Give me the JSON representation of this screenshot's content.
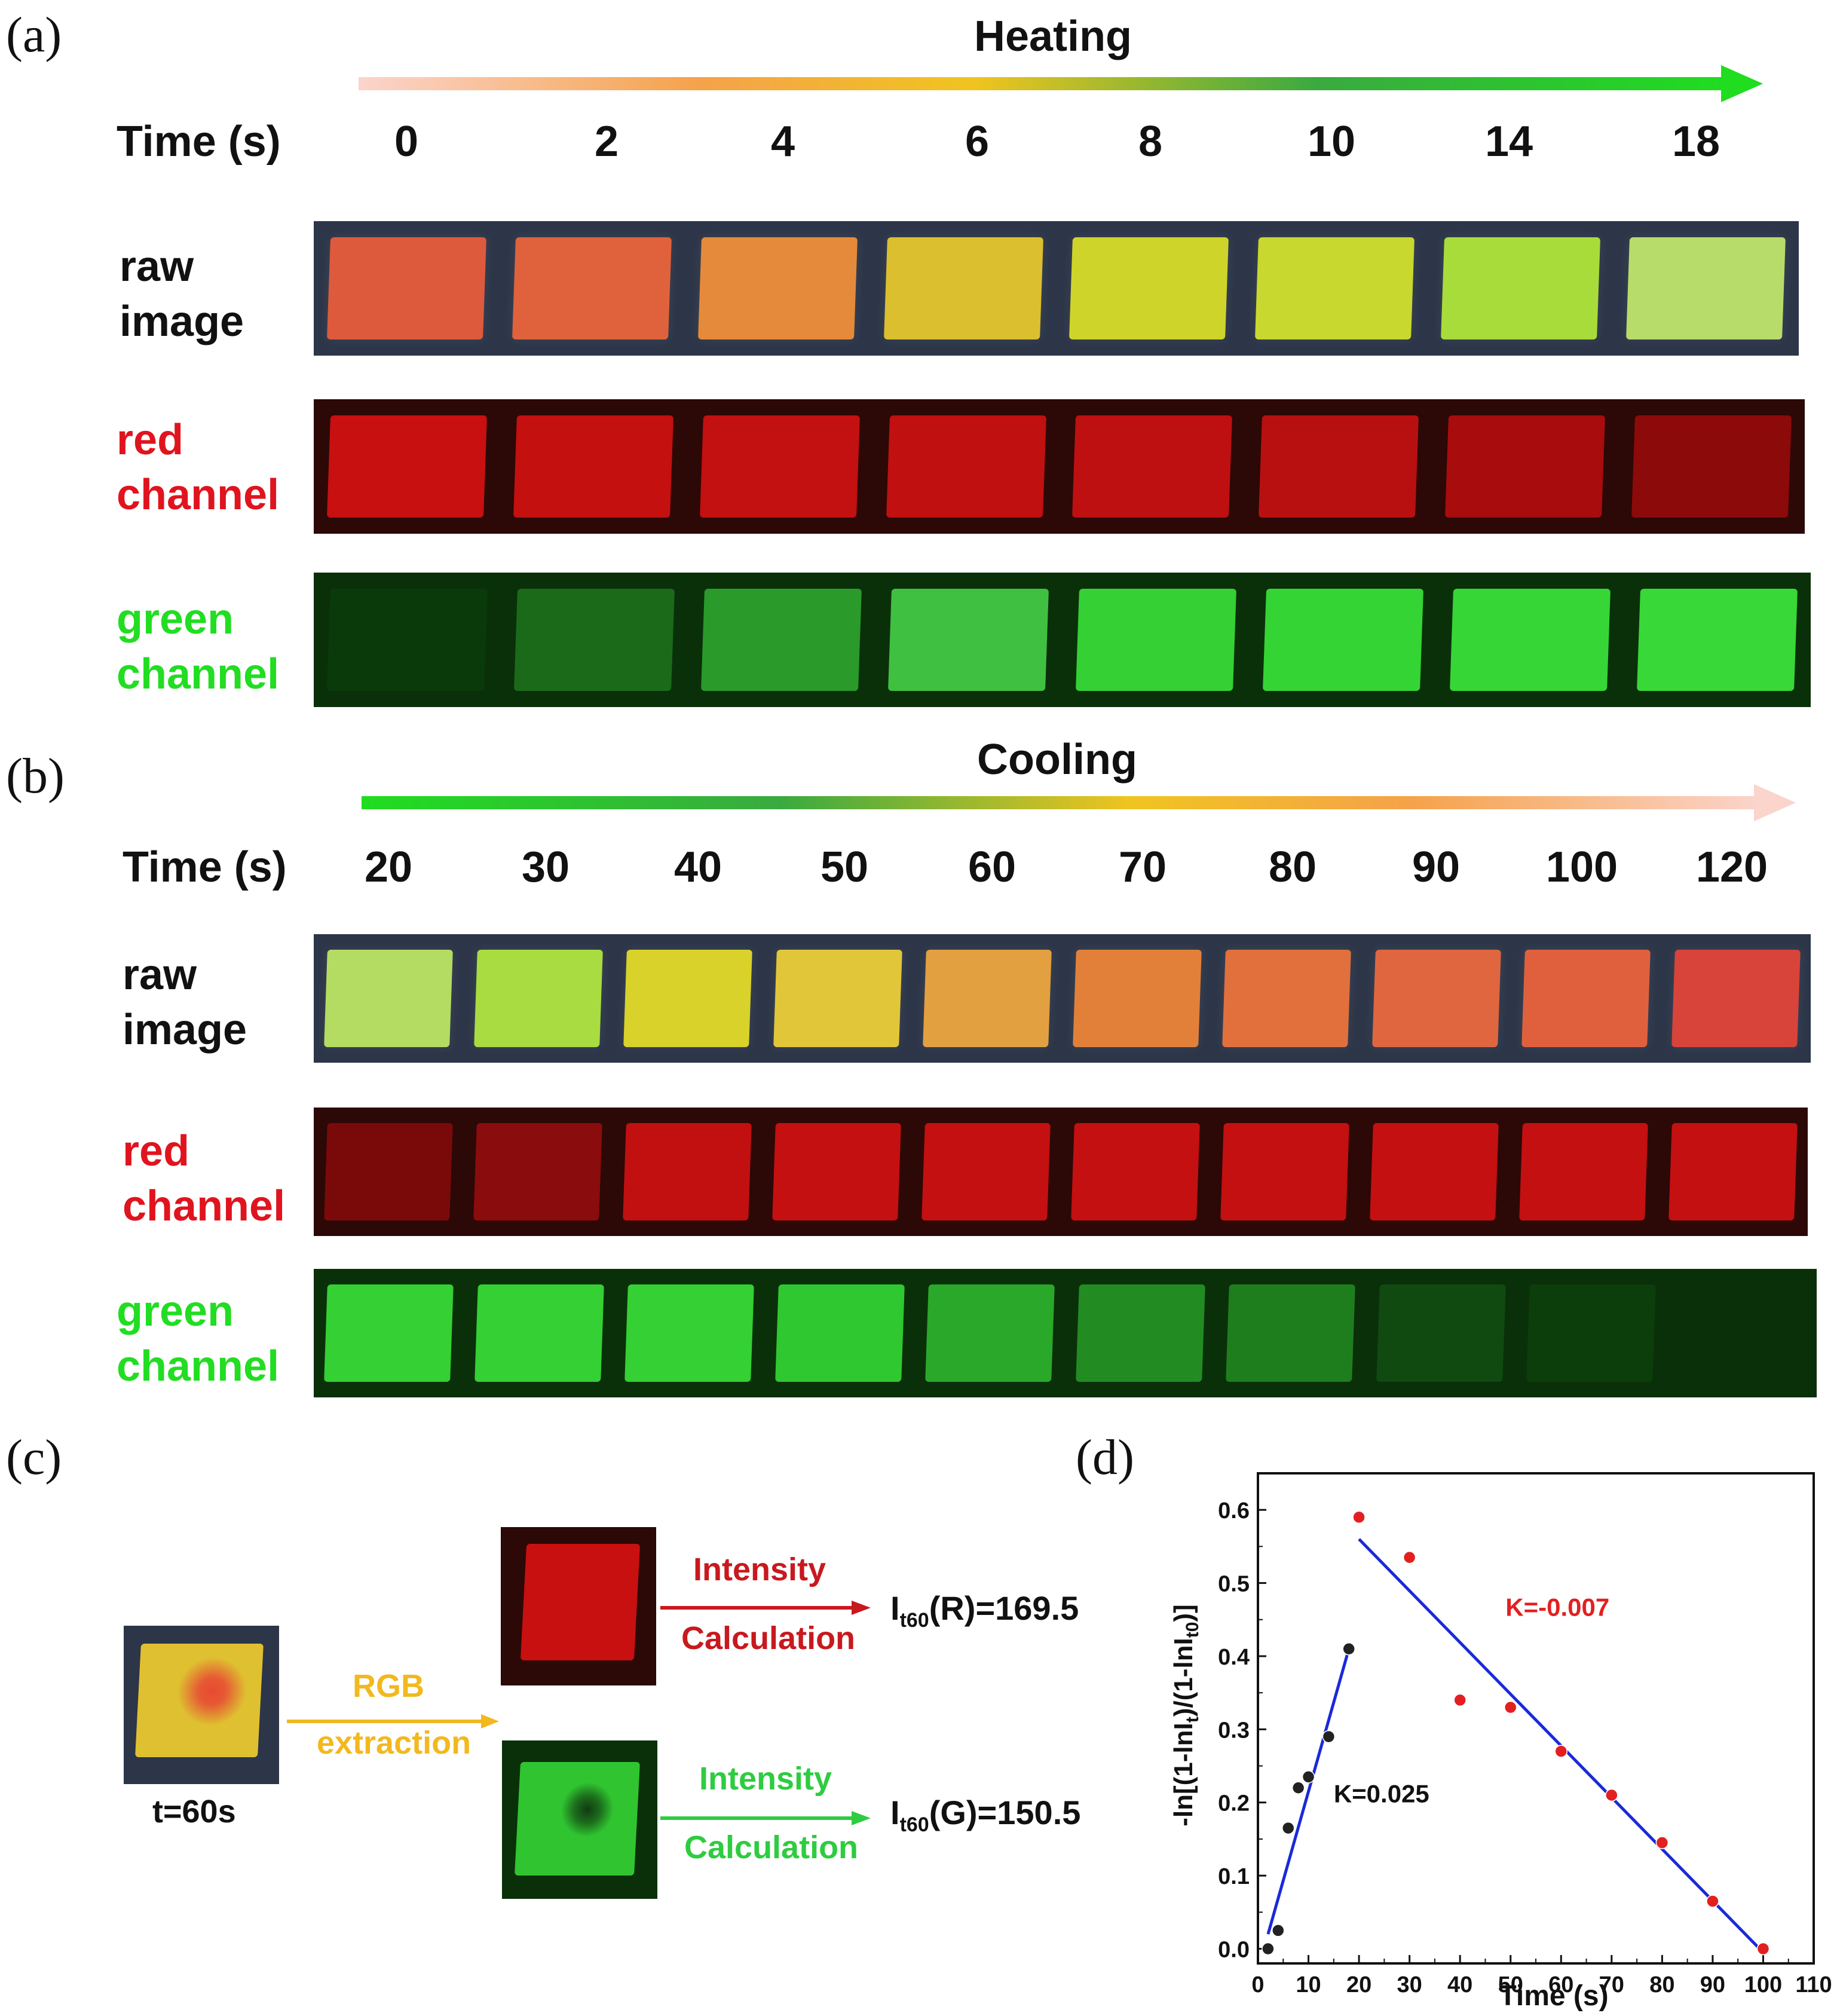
{
  "panel_a": {
    "label": "(a)",
    "title": "Heating",
    "time_label": "Time (s)",
    "times": [
      "0",
      "2",
      "4",
      "6",
      "8",
      "10",
      "14",
      "18"
    ],
    "rows": {
      "raw": [
        "raw",
        "image"
      ],
      "red": [
        "red",
        "channel"
      ],
      "green": [
        "green",
        "channel"
      ]
    },
    "raw_colors": [
      "#dd5a3c",
      "#e0623c",
      "#e58a3a",
      "#dcbf2e",
      "#cfd42a",
      "#c8d82e",
      "#a8dc3a",
      "#b8dc6a"
    ],
    "red_colors": [
      "#c81010",
      "#c51010",
      "#c31010",
      "#c01010",
      "#be1010",
      "#b81010",
      "#a80c0c",
      "#8c0a0a"
    ],
    "green_colors": [
      "#0a3a0a",
      "#1a6a1a",
      "#2a9a2a",
      "#40c040",
      "#34d034",
      "#34d434",
      "#36d636",
      "#38d838"
    ]
  },
  "panel_b": {
    "label": "(b)",
    "title": "Cooling",
    "time_label": "Time (s)",
    "times": [
      "20",
      "30",
      "40",
      "50",
      "60",
      "70",
      "80",
      "90",
      "100",
      "120"
    ],
    "rows": {
      "raw": [
        "raw",
        "image"
      ],
      "red": [
        "red",
        "channel"
      ],
      "green": [
        "green",
        "channel"
      ]
    },
    "raw_colors": [
      "#b4dc62",
      "#a8dc40",
      "#d8d22a",
      "#e2c63a",
      "#e2a040",
      "#e2803a",
      "#e2703c",
      "#e06640",
      "#e0603e",
      "#d8443a"
    ],
    "red_colors": [
      "#7a0a0a",
      "#8a0c0c",
      "#c21010",
      "#c41010",
      "#c41010",
      "#c41010",
      "#c41010",
      "#c41010",
      "#c41010",
      "#c41010"
    ],
    "green_colors": [
      "#34d034",
      "#34d034",
      "#34d034",
      "#30c830",
      "#2aa82a",
      "#228c22",
      "#1e7e1e",
      "#104a10",
      "#0c3e0c",
      "#093009"
    ]
  },
  "panel_c": {
    "label": "(c)",
    "sample_caption": "t=60s",
    "rgb_top": "RGB",
    "rgb_bottom": "extraction",
    "red_top": "Intensity",
    "red_bottom": "Calculation",
    "green_top": "Intensity",
    "green_bottom": "Calculation",
    "red_result_main": "I",
    "red_result_sub": "t60",
    "red_result_rest": "(R)=169.5",
    "green_result_main": "I",
    "green_result_sub": "t60",
    "green_result_rest": "(G)=150.5",
    "colors": {
      "rgb": "#f2b81e",
      "red": "#c8191e",
      "green": "#2ecc40"
    }
  },
  "panel_d": {
    "label": "(d)"
  },
  "chart_data": {
    "type": "scatter",
    "xlabel": "Time (s)",
    "ylabel": "-ln[(1-lnI_t)/(1-lnI_t0)]",
    "xlim": [
      0,
      110
    ],
    "ylim": [
      -0.02,
      0.65
    ],
    "xticks": [
      0,
      10,
      20,
      30,
      40,
      50,
      60,
      70,
      80,
      90,
      100,
      110
    ],
    "yticks": [
      0.0,
      0.1,
      0.2,
      0.3,
      0.4,
      0.5,
      0.6
    ],
    "series": [
      {
        "color": "#222222",
        "points": [
          [
            2,
            0.0
          ],
          [
            4,
            0.025
          ],
          [
            6,
            0.165
          ],
          [
            8,
            0.22
          ],
          [
            10,
            0.235
          ],
          [
            14,
            0.29
          ],
          [
            18,
            0.41
          ]
        ],
        "fit": [
          [
            2,
            0.02
          ],
          [
            18,
            0.41
          ]
        ],
        "annotation": "K=0.025",
        "annotation_at": [
          15,
          0.2
        ],
        "annotation_color": "#111111"
      },
      {
        "color": "#e32020",
        "points": [
          [
            20,
            0.59
          ],
          [
            30,
            0.535
          ],
          [
            40,
            0.34
          ],
          [
            50,
            0.33
          ],
          [
            60,
            0.27
          ],
          [
            70,
            0.21
          ],
          [
            80,
            0.145
          ],
          [
            90,
            0.065
          ],
          [
            100,
            0.0
          ]
        ],
        "fit": [
          [
            20,
            0.56
          ],
          [
            100,
            -0.005
          ]
        ],
        "annotation": "K=-0.007",
        "annotation_at": [
          49,
          0.455
        ],
        "annotation_color": "#e32020"
      }
    ],
    "fit_color": "#1a2ad8"
  }
}
